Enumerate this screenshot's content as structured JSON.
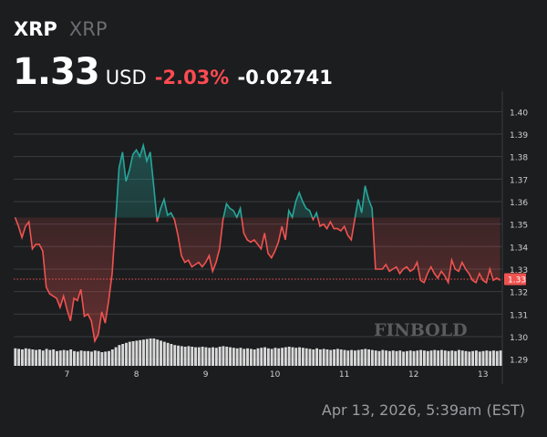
{
  "header": {
    "symbol": "XRP",
    "name": "XRP",
    "price": "1.33",
    "currency": "USD",
    "change_pct": "-2.03%",
    "change_abs": "-0.02741"
  },
  "watermark": "FINBOLD",
  "timestamp": "Apr 13, 2026, 5:39am (EST)",
  "colors": {
    "background": "#1c1d1f",
    "up": "#26a69a",
    "down": "#ef5350",
    "current_price_line": "#ef5350",
    "volume": "#d9d9d9"
  },
  "chart_data": {
    "type": "line",
    "xlabel": "",
    "ylabel": "",
    "x_tick_labels": [
      "7",
      "8",
      "9",
      "10",
      "11",
      "12",
      "13"
    ],
    "x_tick_positions_day": [
      7,
      8,
      9,
      10,
      11,
      12,
      13
    ],
    "y_tick_labels": [
      "1.29",
      "1.30",
      "1.31",
      "1.32",
      "1.33",
      "1.34",
      "1.35",
      "1.36",
      "1.37",
      "1.38",
      "1.39",
      "1.40"
    ],
    "ylim": [
      1.287,
      1.405
    ],
    "xlim": [
      6.23,
      13.28
    ],
    "grid": true,
    "current_price": 1.3255,
    "current_price_label": "1.33",
    "baseline_price": 1.3529,
    "series": [
      {
        "x": [
          6.25,
          6.3,
          6.35,
          6.4,
          6.45,
          6.5,
          6.55,
          6.6,
          6.65,
          6.7,
          6.75,
          6.8,
          6.85,
          6.9,
          6.95,
          7.0,
          7.05,
          7.1,
          7.15,
          7.2,
          7.25,
          7.3,
          7.35,
          7.4,
          7.45,
          7.5,
          7.55,
          7.6,
          7.65,
          7.7,
          7.75,
          7.8,
          7.85,
          7.9,
          7.95,
          8.0,
          8.05,
          8.1,
          8.15,
          8.2,
          8.25,
          8.3,
          8.35,
          8.4,
          8.45,
          8.5,
          8.55,
          8.6,
          8.65,
          8.7,
          8.75,
          8.8,
          8.85,
          8.9,
          8.95,
          9.0,
          9.05,
          9.1,
          9.15,
          9.2,
          9.25,
          9.3,
          9.35,
          9.4,
          9.45,
          9.5,
          9.55,
          9.6,
          9.65,
          9.7,
          9.75,
          9.8,
          9.85,
          9.9,
          9.95,
          10.0,
          10.05,
          10.1,
          10.15,
          10.2,
          10.25,
          10.3,
          10.35,
          10.4,
          10.45,
          10.5,
          10.55,
          10.6,
          10.65,
          10.7,
          10.75,
          10.8,
          10.85,
          10.9,
          10.95,
          11.0,
          11.05,
          11.1,
          11.15,
          11.2,
          11.25,
          11.3,
          11.35,
          11.4,
          11.45,
          11.5,
          11.55,
          11.6,
          11.65,
          11.7,
          11.75,
          11.8,
          11.85,
          11.9,
          11.95,
          12.0,
          12.05,
          12.1,
          12.15,
          12.2,
          12.25,
          12.3,
          12.35,
          12.4,
          12.45,
          12.5,
          12.55,
          12.6,
          12.65,
          12.7,
          12.75,
          12.8,
          12.85,
          12.9,
          12.95,
          13.0,
          13.05,
          13.1,
          13.15,
          13.2,
          13.25
        ],
        "y": [
          1.353,
          1.349,
          1.344,
          1.349,
          1.351,
          1.339,
          1.341,
          1.341,
          1.338,
          1.322,
          1.319,
          1.318,
          1.317,
          1.313,
          1.318,
          1.312,
          1.307,
          1.317,
          1.316,
          1.321,
          1.309,
          1.31,
          1.307,
          1.298,
          1.301,
          1.311,
          1.306,
          1.316,
          1.328,
          1.351,
          1.375,
          1.382,
          1.369,
          1.374,
          1.381,
          1.383,
          1.38,
          1.385,
          1.378,
          1.382,
          1.367,
          1.351,
          1.357,
          1.361,
          1.354,
          1.355,
          1.352,
          1.345,
          1.336,
          1.333,
          1.334,
          1.331,
          1.332,
          1.333,
          1.331,
          1.333,
          1.336,
          1.329,
          1.333,
          1.339,
          1.352,
          1.359,
          1.357,
          1.356,
          1.353,
          1.357,
          1.346,
          1.343,
          1.342,
          1.343,
          1.341,
          1.339,
          1.346,
          1.337,
          1.335,
          1.338,
          1.342,
          1.349,
          1.343,
          1.356,
          1.353,
          1.36,
          1.364,
          1.36,
          1.357,
          1.356,
          1.352,
          1.355,
          1.349,
          1.35,
          1.348,
          1.351,
          1.348,
          1.348,
          1.347,
          1.349,
          1.345,
          1.343,
          1.352,
          1.361,
          1.355,
          1.367,
          1.361,
          1.357,
          1.33,
          1.33,
          1.33,
          1.332,
          1.329,
          1.33,
          1.331,
          1.328,
          1.33,
          1.331,
          1.329,
          1.33,
          1.333,
          1.325,
          1.324,
          1.328,
          1.331,
          1.328,
          1.326,
          1.329,
          1.327,
          1.324,
          1.334,
          1.33,
          1.329,
          1.333,
          1.33,
          1.328,
          1.325,
          1.324,
          1.328,
          1.325,
          1.324,
          1.33,
          1.325,
          1.326,
          1.325
        ]
      }
    ],
    "volume": [
      32,
      31,
      30,
      32,
      31,
      30,
      29,
      30,
      28,
      31,
      29,
      30,
      27,
      28,
      29,
      28,
      30,
      27,
      26,
      28,
      27,
      27,
      26,
      28,
      27,
      25,
      26,
      27,
      30,
      34,
      38,
      40,
      42,
      44,
      45,
      46,
      47,
      48,
      49,
      50,
      50,
      48,
      46,
      44,
      42,
      40,
      38,
      37,
      36,
      35,
      36,
      35,
      34,
      34,
      35,
      34,
      33,
      34,
      33,
      35,
      36,
      35,
      34,
      33,
      32,
      33,
      31,
      32,
      31,
      30,
      32,
      33,
      34,
      32,
      31,
      33,
      32,
      33,
      34,
      35,
      34,
      33,
      34,
      33,
      32,
      31,
      30,
      32,
      30,
      31,
      30,
      29,
      30,
      31,
      30,
      29,
      28,
      29,
      28,
      29,
      30,
      31,
      30,
      29,
      28,
      27,
      29,
      28,
      27,
      28,
      27,
      28,
      26,
      27,
      28,
      27,
      28,
      29,
      28,
      27,
      28,
      29,
      28,
      29,
      28,
      27,
      28,
      27,
      29,
      28,
      27,
      26,
      27,
      28,
      26,
      27,
      28,
      27,
      28,
      27,
      28
    ]
  }
}
